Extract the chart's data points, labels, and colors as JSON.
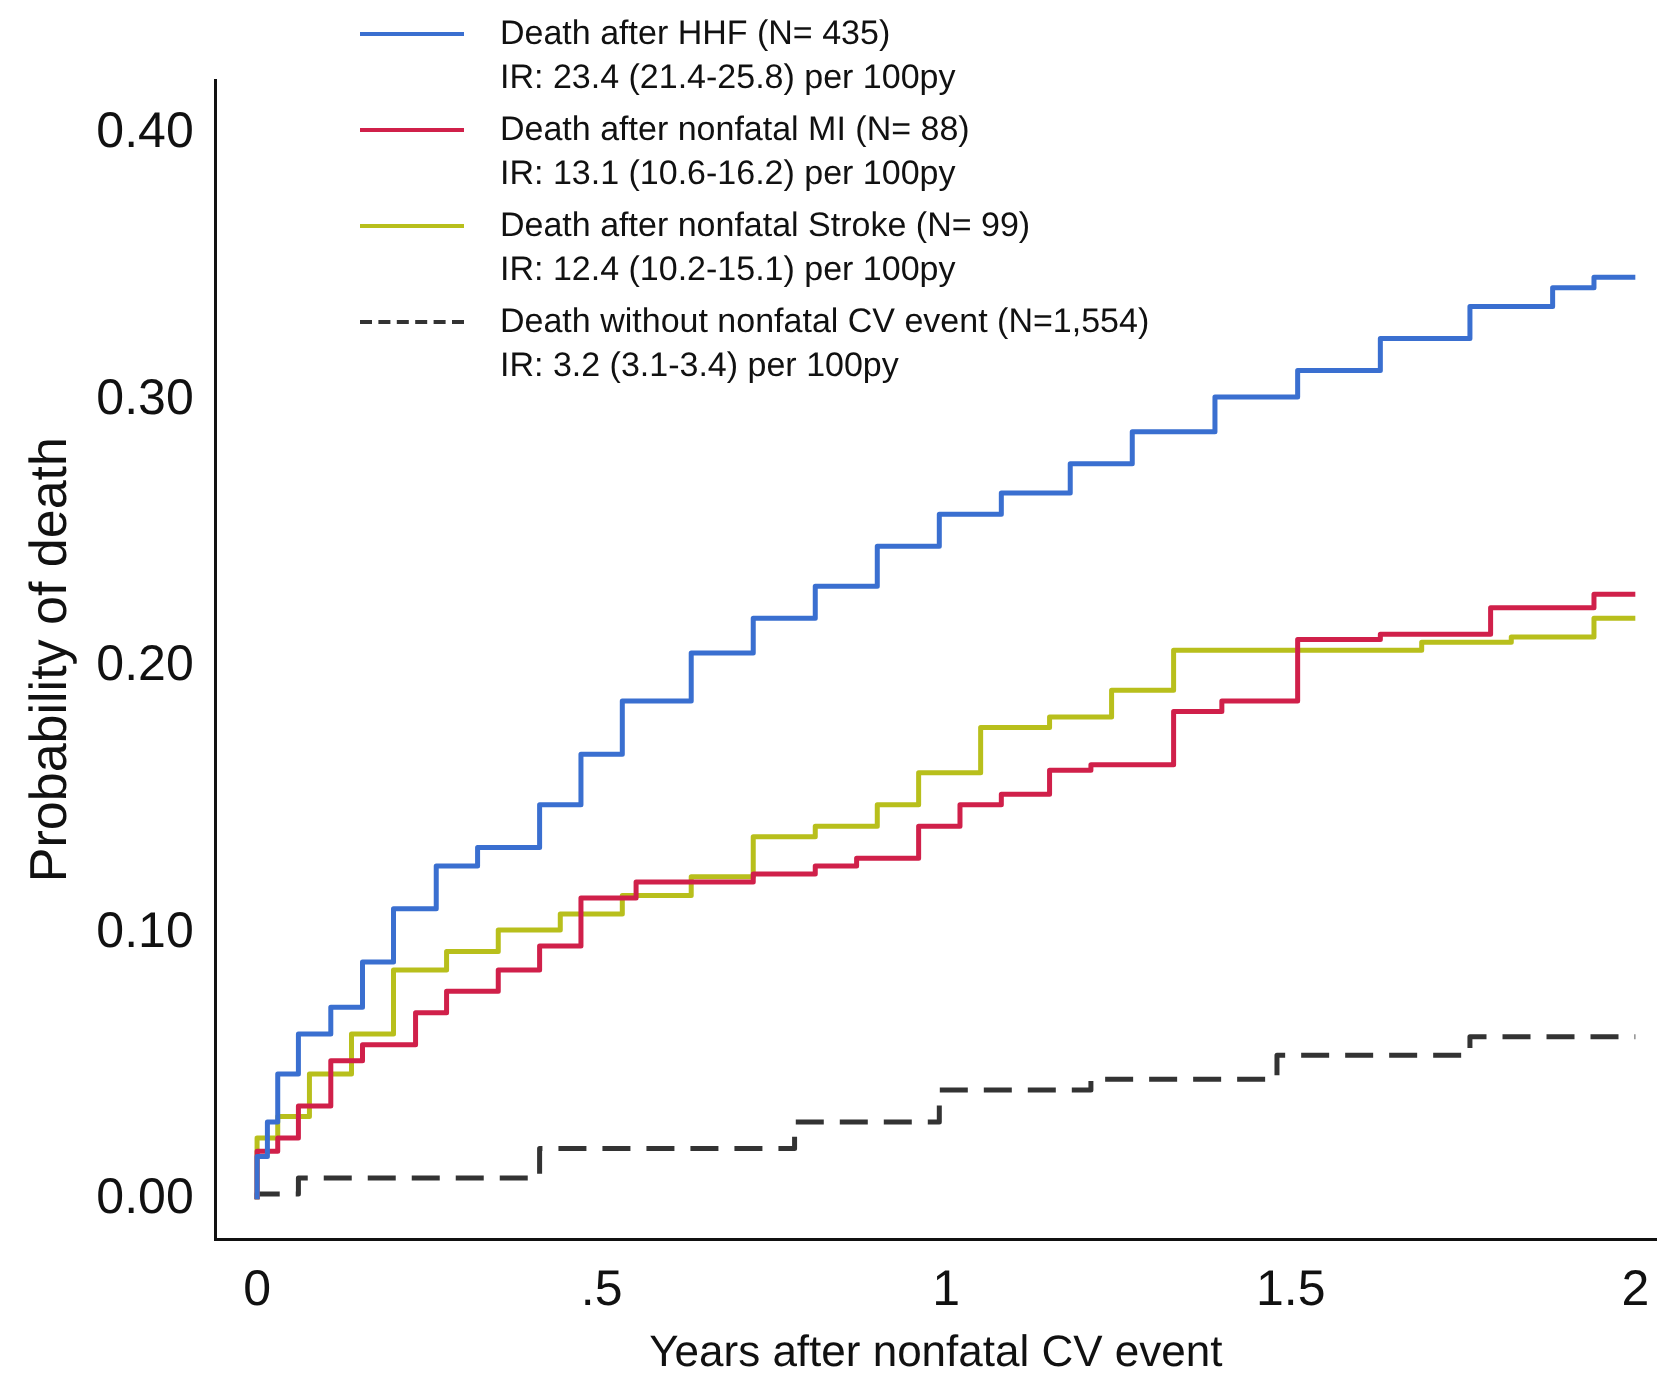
{
  "chart_data": {
    "type": "step",
    "xlabel": "Years after nonfatal CV event",
    "ylabel": "Probability of death",
    "xlim": [
      -0.06,
      2.03
    ],
    "ylim": [
      -0.015,
      0.42
    ],
    "xticks": [
      0,
      {
        "value": 0.5,
        "label": ".5"
      },
      1,
      {
        "value": 1.5,
        "label": "1.5"
      },
      2
    ],
    "yticks": [
      {
        "value": 0,
        "label": "0.00"
      },
      {
        "value": 0.1,
        "label": "0.10"
      },
      {
        "value": 0.2,
        "label": "0.20"
      },
      {
        "value": 0.3,
        "label": "0.30"
      },
      {
        "value": 0.4,
        "label": "0.40"
      }
    ],
    "grid": false,
    "legend": "top left",
    "marker": "none",
    "series": [
      {
        "name": "Death after HHF (N= 435)\nIR: 23.4 (21.4-25.8) per 100py",
        "color": "#3a6fd0",
        "line_style": "solid",
        "x": [
          0,
          0.015,
          0.03,
          0.06,
          0.107,
          0.153,
          0.198,
          0.26,
          0.32,
          0.41,
          0.47,
          0.53,
          0.63,
          0.72,
          0.81,
          0.9,
          0.99,
          1.08,
          1.18,
          1.27,
          1.39,
          1.51,
          1.63,
          1.76,
          1.88,
          1.94,
          2.0
        ],
        "values": [
          0,
          0.016,
          0.029,
          0.047,
          0.062,
          0.072,
          0.089,
          0.109,
          0.125,
          0.132,
          0.148,
          0.167,
          0.187,
          0.205,
          0.218,
          0.23,
          0.245,
          0.257,
          0.265,
          0.276,
          0.288,
          0.301,
          0.311,
          0.323,
          0.335,
          0.342,
          0.346
        ]
      },
      {
        "name": "Death after nonfatal MI (N= 88)\nIR: 13.1 (10.6-16.2) per 100py",
        "color": "#d0204a",
        "line_style": "solid",
        "x": [
          0,
          0.03,
          0.06,
          0.107,
          0.153,
          0.23,
          0.275,
          0.35,
          0.41,
          0.47,
          0.55,
          0.63,
          0.72,
          0.81,
          0.87,
          0.96,
          1.02,
          1.08,
          1.15,
          1.21,
          1.33,
          1.4,
          1.51,
          1.63,
          1.79,
          1.88,
          1.94,
          2.0
        ],
        "values": [
          0,
          0.018,
          0.023,
          0.035,
          0.052,
          0.058,
          0.07,
          0.078,
          0.086,
          0.095,
          0.113,
          0.119,
          0.119,
          0.122,
          0.125,
          0.128,
          0.14,
          0.148,
          0.152,
          0.161,
          0.163,
          0.183,
          0.187,
          0.21,
          0.212,
          0.222,
          0.222,
          0.227
        ]
      },
      {
        "name": "Death after nonfatal Stroke (N= 99)\nIR: 12.4 (10.2-15.1) per 100py",
        "color": "#b8bf1c",
        "line_style": "solid",
        "x": [
          0,
          0.03,
          0.076,
          0.137,
          0.198,
          0.275,
          0.35,
          0.44,
          0.53,
          0.63,
          0.72,
          0.81,
          0.9,
          0.96,
          1.05,
          1.15,
          1.24,
          1.33,
          1.45,
          1.69,
          1.82,
          1.94,
          1.98,
          2.0
        ],
        "values": [
          0,
          0.023,
          0.031,
          0.047,
          0.062,
          0.086,
          0.093,
          0.101,
          0.107,
          0.114,
          0.121,
          0.136,
          0.14,
          0.148,
          0.16,
          0.177,
          0.181,
          0.191,
          0.206,
          0.206,
          0.209,
          0.211,
          0.218,
          0.218
        ]
      },
      {
        "name": "Death without nonfatal CV event (N=1,554)\nIR: 3.2 (3.1-3.4) per 100py",
        "color": "#333333",
        "line_style": "dashed",
        "x": [
          0,
          0.06,
          0.41,
          0.78,
          0.99,
          1.21,
          1.48,
          1.76,
          2.0
        ],
        "values": [
          0,
          0.002,
          0.008,
          0.019,
          0.029,
          0.041,
          0.045,
          0.054,
          0.061
        ]
      }
    ]
  }
}
